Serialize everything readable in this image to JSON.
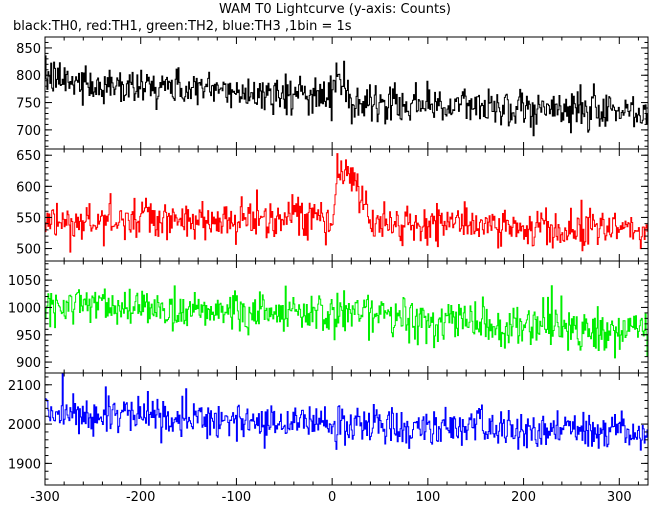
{
  "chart_data": {
    "type": "line",
    "title": "WAM T0 Lightcurve (y-axis: Counts)",
    "subtitle": "black:TH0, red:TH1, green:TH2, blue:TH3 ,1bin = 1s",
    "x_range": [
      -300,
      330
    ],
    "x_ticks": [
      -300,
      -200,
      -100,
      0,
      100,
      200,
      300
    ],
    "panels": [
      {
        "name": "TH0",
        "color": "#000000",
        "ylim": [
          665,
          870
        ],
        "y_ticks": [
          700,
          750,
          800,
          850
        ],
        "trend": [
          [
            -300,
            790
          ],
          [
            -200,
            780
          ],
          [
            -100,
            770
          ],
          [
            0,
            760
          ],
          [
            100,
            745
          ],
          [
            200,
            740
          ],
          [
            330,
            732
          ]
        ],
        "bursts": [
          [
            0,
            12,
            830
          ]
        ],
        "noise": 50,
        "jitter": 16
      },
      {
        "name": "TH1",
        "color": "#ff0000",
        "ylim": [
          480,
          660
        ],
        "y_ticks": [
          500,
          550,
          600,
          650
        ],
        "trend": [
          [
            -300,
            540
          ],
          [
            -200,
            545
          ],
          [
            -100,
            545
          ],
          [
            0,
            545
          ],
          [
            100,
            540
          ],
          [
            200,
            535
          ],
          [
            330,
            533
          ]
        ],
        "bursts": [
          [
            0,
            0,
            545
          ],
          [
            5,
            600,
            625
          ],
          [
            20,
            640,
            620
          ],
          [
            35,
            600,
            560
          ],
          [
            45,
            550,
            540
          ]
        ],
        "noise": 40,
        "jitter": 14
      },
      {
        "name": "TH2",
        "color": "#00ee00",
        "ylim": [
          880,
          1085
        ],
        "y_ticks": [
          900,
          950,
          1000,
          1050
        ],
        "trend": [
          [
            -300,
            1005
          ],
          [
            -200,
            1000
          ],
          [
            -100,
            995
          ],
          [
            0,
            990
          ],
          [
            100,
            975
          ],
          [
            200,
            965
          ],
          [
            330,
            955
          ]
        ],
        "bursts": [],
        "noise": 55,
        "jitter": 18
      },
      {
        "name": "TH3",
        "color": "#0000ff",
        "ylim": [
          1845,
          2130
        ],
        "y_ticks": [
          1900,
          2000,
          2100
        ],
        "trend": [
          [
            -300,
            2030
          ],
          [
            -200,
            2020
          ],
          [
            -100,
            2005
          ],
          [
            0,
            2000
          ],
          [
            100,
            1995
          ],
          [
            200,
            1985
          ],
          [
            330,
            1978
          ]
        ],
        "bursts": [],
        "noise": 70,
        "jitter": 22
      }
    ]
  }
}
